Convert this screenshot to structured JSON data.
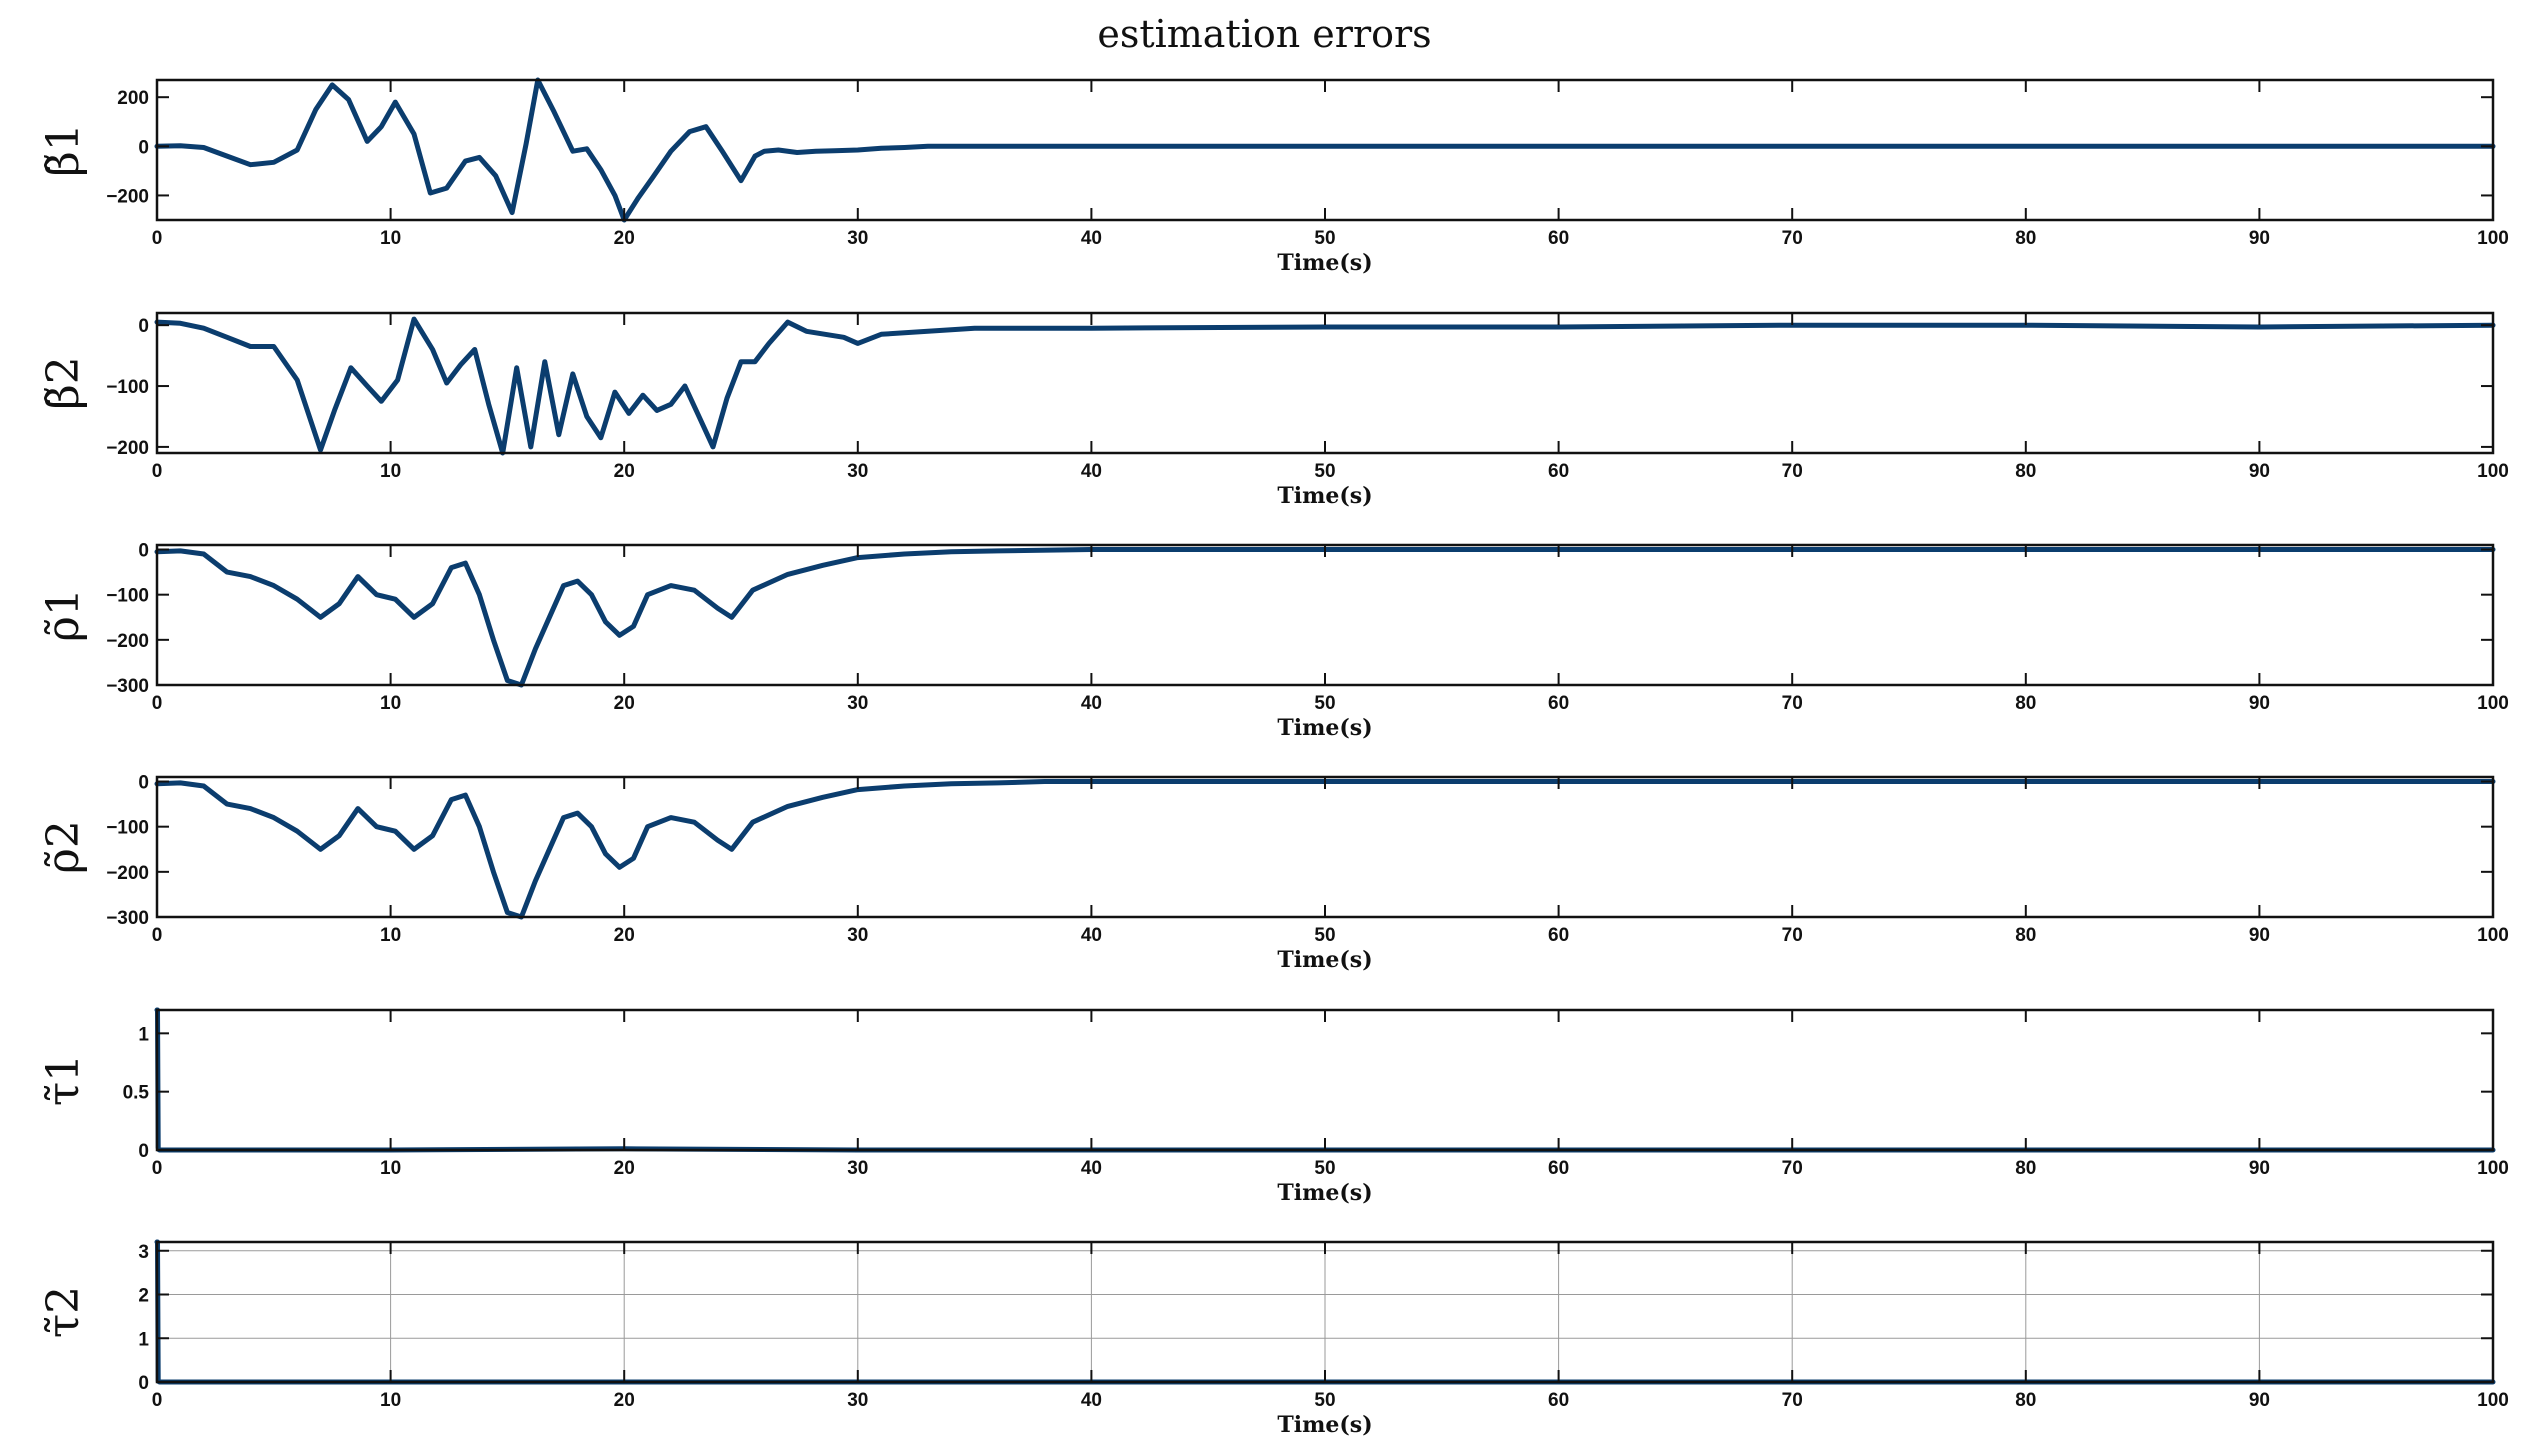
{
  "title": "estimation errors",
  "colors": {
    "line": "#0b3d6e",
    "axis": "#111111",
    "grid": "#9a9a9a"
  },
  "chart_data": [
    {
      "type": "line",
      "ylabel": "β̃1",
      "xlabel": "Time(s)",
      "xlim": [
        0,
        100
      ],
      "ylim": [
        -300,
        270
      ],
      "xticks": [
        0,
        10,
        20,
        30,
        40,
        50,
        60,
        70,
        80,
        90,
        100
      ],
      "yticks": [
        -200,
        0,
        200
      ],
      "grid": false,
      "series": [
        {
          "x": [
            0,
            1,
            2,
            3,
            4,
            5,
            6,
            6.8,
            7.5,
            8.2,
            9,
            9.6,
            10.2,
            11,
            11.7,
            12.4,
            13.2,
            13.8,
            14.5,
            15.2,
            15.8,
            16.3,
            17,
            17.8,
            18.4,
            19,
            19.6,
            20,
            20.6,
            21.2,
            22,
            22.8,
            23.5,
            24.2,
            25,
            25.6,
            26,
            26.6,
            27.4,
            28.2,
            29,
            30,
            31,
            32,
            33,
            35,
            40,
            50,
            60,
            70,
            80,
            90,
            100
          ],
          "y": [
            0,
            2,
            -5,
            -40,
            -75,
            -65,
            -15,
            150,
            250,
            190,
            20,
            80,
            180,
            50,
            -190,
            -170,
            -60,
            -45,
            -120,
            -270,
            10,
            270,
            140,
            -20,
            -10,
            -95,
            -200,
            -300,
            -210,
            -130,
            -20,
            60,
            80,
            -20,
            -140,
            -40,
            -20,
            -15,
            -25,
            -20,
            -18,
            -15,
            -8,
            -5,
            0,
            0,
            0,
            0,
            0,
            0,
            0,
            0,
            0
          ]
        }
      ]
    },
    {
      "type": "line",
      "ylabel": "β̃2",
      "xlabel": "Time(s)",
      "xlim": [
        0,
        100
      ],
      "ylim": [
        -210,
        20
      ],
      "xticks": [
        0,
        10,
        20,
        30,
        40,
        50,
        60,
        70,
        80,
        90,
        100
      ],
      "yticks": [
        -200,
        -100,
        0
      ],
      "grid": false,
      "series": [
        {
          "x": [
            0,
            1,
            2,
            3,
            4,
            5,
            6,
            7,
            7.6,
            8.3,
            9,
            9.6,
            10.3,
            11,
            11.8,
            12.4,
            13,
            13.6,
            14.2,
            14.8,
            15.4,
            16,
            16.6,
            17.2,
            17.8,
            18.4,
            19,
            19.6,
            20.2,
            20.8,
            21.4,
            22,
            22.6,
            23.2,
            23.8,
            24.4,
            25,
            25.6,
            26.2,
            27,
            27.8,
            28.6,
            29.4,
            30,
            31,
            33,
            35,
            40,
            50,
            60,
            70,
            80,
            90,
            100
          ],
          "y": [
            5,
            3,
            -5,
            -20,
            -35,
            -35,
            -90,
            -205,
            -140,
            -70,
            -100,
            -125,
            -90,
            10,
            -40,
            -95,
            -65,
            -40,
            -130,
            -210,
            -70,
            -200,
            -60,
            -180,
            -80,
            -150,
            -185,
            -110,
            -145,
            -115,
            -140,
            -130,
            -100,
            -150,
            -200,
            -120,
            -60,
            -60,
            -30,
            5,
            -10,
            -15,
            -20,
            -30,
            -15,
            -10,
            -5,
            -5,
            -3,
            -3,
            0,
            0,
            -3,
            0
          ],
          "note": ""
        }
      ]
    },
    {
      "type": "line",
      "ylabel": "ρ̃1",
      "xlabel": "Time(s)",
      "xlim": [
        0,
        100
      ],
      "ylim": [
        -300,
        10
      ],
      "xticks": [
        0,
        10,
        20,
        30,
        40,
        50,
        60,
        70,
        80,
        90,
        100
      ],
      "yticks": [
        -300,
        -200,
        -100,
        0
      ],
      "grid": false,
      "series": [
        {
          "x": [
            0,
            1,
            2,
            3,
            4,
            5,
            6,
            7,
            7.8,
            8.6,
            9.4,
            10.2,
            11,
            11.8,
            12.6,
            13.2,
            13.8,
            14.4,
            15,
            15.6,
            16.2,
            16.8,
            17.4,
            18,
            18.6,
            19.2,
            19.8,
            20.4,
            21,
            22,
            23,
            24,
            24.6,
            25.5,
            27,
            28.5,
            30,
            32,
            34,
            36,
            40,
            50,
            60,
            70,
            80,
            90,
            100
          ],
          "y": [
            -5,
            -3,
            -10,
            -50,
            -60,
            -80,
            -110,
            -150,
            -120,
            -60,
            -100,
            -110,
            -150,
            -120,
            -40,
            -30,
            -100,
            -200,
            -290,
            -300,
            -220,
            -150,
            -80,
            -70,
            -100,
            -160,
            -190,
            -170,
            -100,
            -80,
            -90,
            -130,
            -150,
            -90,
            -55,
            -35,
            -18,
            -10,
            -5,
            -3,
            0,
            0,
            0,
            0,
            0,
            0,
            0
          ]
        }
      ]
    },
    {
      "type": "line",
      "ylabel": "ρ̃2",
      "xlabel": "Time(s)",
      "xlim": [
        0,
        100
      ],
      "ylim": [
        -300,
        10
      ],
      "xticks": [
        0,
        10,
        20,
        30,
        40,
        50,
        60,
        70,
        80,
        90,
        100
      ],
      "yticks": [
        -300,
        -200,
        -100,
        0
      ],
      "grid": false,
      "series": [
        {
          "x": [
            0,
            1,
            2,
            3,
            4,
            5,
            6,
            7,
            7.8,
            8.6,
            9.4,
            10.2,
            11,
            11.8,
            12.6,
            13.2,
            13.8,
            14.4,
            15,
            15.6,
            16.2,
            16.8,
            17.4,
            18,
            18.6,
            19.2,
            19.8,
            20.4,
            21,
            22,
            23,
            24,
            24.6,
            25.5,
            27,
            28.5,
            30,
            32,
            34,
            36,
            38,
            40,
            50,
            60,
            70,
            80,
            90,
            100
          ],
          "y": [
            -5,
            -3,
            -10,
            -50,
            -60,
            -80,
            -110,
            -150,
            -120,
            -60,
            -100,
            -110,
            -150,
            -120,
            -40,
            -30,
            -100,
            -200,
            -290,
            -300,
            -220,
            -150,
            -80,
            -70,
            -100,
            -160,
            -190,
            -170,
            -100,
            -80,
            -90,
            -130,
            -150,
            -90,
            -55,
            -35,
            -18,
            -10,
            -5,
            -3,
            0,
            0,
            0,
            0,
            0,
            0,
            0,
            0
          ]
        }
      ]
    },
    {
      "type": "line",
      "ylabel": "τ̃1",
      "xlabel": "Time(s)",
      "xlim": [
        0,
        100
      ],
      "ylim": [
        0,
        1.2
      ],
      "xticks": [
        0,
        10,
        20,
        30,
        40,
        50,
        60,
        70,
        80,
        90,
        100
      ],
      "yticks": [
        0,
        0.5,
        1
      ],
      "grid": false,
      "series": [
        {
          "x": [
            0,
            0.02,
            0.05,
            0.1,
            10,
            20,
            30,
            40,
            50,
            60,
            70,
            80,
            90,
            100
          ],
          "y": [
            1.2,
            1.2,
            0.02,
            0,
            0,
            0.01,
            0,
            0,
            0,
            0,
            0,
            0,
            0,
            0
          ]
        }
      ]
    },
    {
      "type": "line",
      "ylabel": "τ̃2",
      "xlabel": "Time(s)",
      "xlim": [
        0,
        100
      ],
      "ylim": [
        0,
        3.2
      ],
      "xticks": [
        0,
        10,
        20,
        30,
        40,
        50,
        60,
        70,
        80,
        90,
        100
      ],
      "yticks": [
        0,
        1,
        2,
        3
      ],
      "grid": true,
      "series": [
        {
          "x": [
            0,
            0.02,
            0.05,
            0.1,
            10,
            20,
            30,
            40,
            50,
            60,
            70,
            80,
            90,
            100
          ],
          "y": [
            3.2,
            3.2,
            0.02,
            0,
            0,
            0,
            0,
            0,
            0,
            0,
            0,
            0,
            0,
            0
          ]
        }
      ]
    }
  ]
}
